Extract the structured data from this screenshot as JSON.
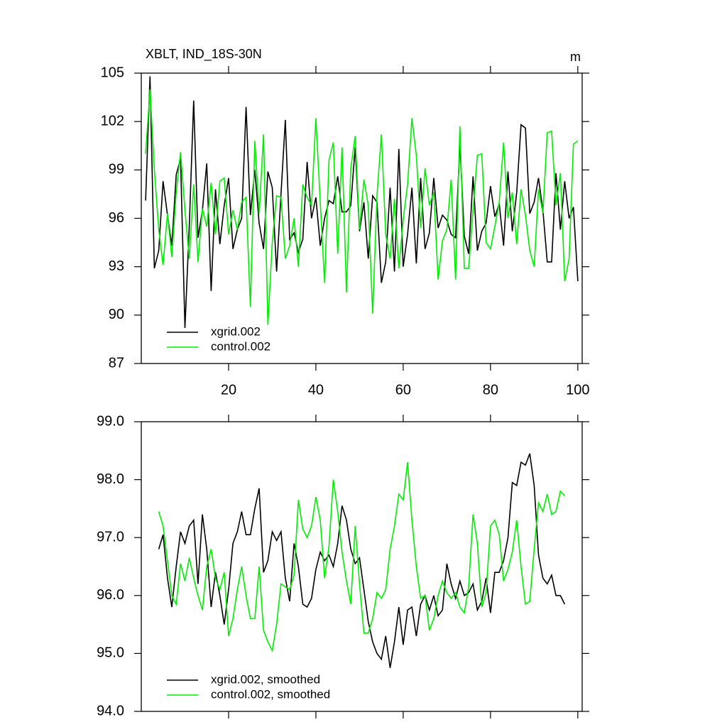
{
  "chart_data": [
    {
      "type": "line",
      "title": "XBLT, IND_18S-30N",
      "units": "m",
      "x": [
        1,
        2,
        3,
        4,
        5,
        6,
        7,
        8,
        9,
        10,
        11,
        12,
        13,
        14,
        15,
        16,
        17,
        18,
        19,
        20,
        21,
        22,
        23,
        24,
        25,
        26,
        27,
        28,
        29,
        30,
        31,
        32,
        33,
        34,
        35,
        36,
        37,
        38,
        39,
        40,
        41,
        42,
        43,
        44,
        45,
        46,
        47,
        48,
        49,
        50,
        51,
        52,
        53,
        54,
        55,
        56,
        57,
        58,
        59,
        60,
        61,
        62,
        63,
        64,
        65,
        66,
        67,
        68,
        69,
        70,
        71,
        72,
        73,
        74,
        75,
        76,
        77,
        78,
        79,
        80,
        81,
        82,
        83,
        84,
        85,
        86,
        87,
        88,
        89,
        90,
        91,
        92,
        93,
        94,
        95,
        96,
        97,
        98,
        99,
        100
      ],
      "series": [
        {
          "name": "xgrid.002",
          "color": "#000000",
          "values": [
            97.1,
            104.8,
            92.9,
            94.0,
            98.3,
            96.2,
            94.3,
            98.7,
            99.7,
            89.2,
            95.5,
            103.3,
            94.8,
            96.5,
            99.4,
            91.5,
            97.8,
            94.4,
            96.8,
            98.5,
            94.1,
            95.3,
            96.0,
            102.9,
            96.2,
            99.0,
            95.7,
            94.1,
            98.9,
            97.9,
            92.7,
            97.5,
            102.1,
            94.7,
            95.1,
            93.9,
            94.7,
            99.5,
            96.0,
            97.3,
            94.3,
            96.0,
            97.1,
            96.9,
            98.6,
            96.4,
            96.4,
            96.8,
            100.4,
            95.2,
            97.0,
            93.5,
            97.4,
            97.0,
            92.0,
            93.3,
            97.9,
            92.7,
            100.3,
            93.0,
            95.0,
            97.9,
            93.2,
            98.5,
            94.1,
            95.1,
            98.5,
            95.4,
            96.2,
            95.9,
            95.0,
            94.8,
            100.6,
            94.9,
            93.8,
            98.6,
            94.0,
            95.2,
            95.7,
            98.0,
            96.1,
            96.9,
            94.3,
            98.9,
            95.2,
            97.6,
            101.8,
            101.6,
            96.3,
            97.0,
            98.5,
            96.5,
            93.3,
            93.3,
            98.8,
            95.3,
            98.3,
            96.0,
            96.7,
            92.1
          ]
        },
        {
          "name": "control.002",
          "color": "#00ee00",
          "values": [
            100.0,
            104.0,
            99.0,
            95.3,
            93.1,
            96.3,
            93.6,
            97.6,
            100.1,
            96.5,
            93.5,
            98.1,
            93.3,
            96.6,
            95.5,
            98.2,
            95.0,
            98.3,
            98.5,
            95.0,
            96.5,
            95.3,
            97.0,
            97.3,
            90.5,
            100.8,
            96.3,
            101.2,
            89.4,
            94.5,
            97.4,
            97.3,
            93.5,
            94.3,
            96.0,
            93.0,
            98.1,
            97.3,
            96.8,
            102.2,
            97.0,
            92.0,
            99.6,
            100.7,
            93.8,
            100.4,
            91.4,
            99.1,
            101.1,
            95.3,
            98.4,
            96.8,
            90.1,
            97.4,
            101.2,
            95.0,
            93.5,
            97.2,
            92.9,
            95.9,
            98.1,
            102.2,
            99.9,
            95.4,
            99.1,
            96.8,
            97.6,
            92.2,
            94.6,
            95.3,
            98.4,
            92.2,
            101.7,
            92.9,
            92.9,
            96.5,
            99.9,
            100.0,
            94.5,
            94.1,
            95.5,
            97.0,
            100.7,
            96.0,
            97.6,
            94.4,
            97.8,
            96.2,
            94.0,
            93.0,
            97.8,
            96.3,
            101.3,
            101.4,
            96.8,
            98.8,
            92.1,
            93.5,
            100.6,
            100.8
          ]
        }
      ],
      "xlim": [
        0,
        101
      ],
      "xticks": [
        20,
        40,
        60,
        80,
        100
      ],
      "xtick_labels": true,
      "ylim": [
        87,
        105
      ],
      "yticks": [
        87,
        90,
        93,
        96,
        99,
        102,
        105
      ],
      "legend": "lower left"
    },
    {
      "type": "line",
      "x": [
        4,
        5,
        6,
        7,
        8,
        9,
        10,
        11,
        12,
        13,
        14,
        15,
        16,
        17,
        18,
        19,
        20,
        21,
        22,
        23,
        24,
        25,
        26,
        27,
        28,
        29,
        30,
        31,
        32,
        33,
        34,
        35,
        36,
        37,
        38,
        39,
        40,
        41,
        42,
        43,
        44,
        45,
        46,
        47,
        48,
        49,
        50,
        51,
        52,
        53,
        54,
        55,
        56,
        57,
        58,
        59,
        60,
        61,
        62,
        63,
        64,
        65,
        66,
        67,
        68,
        69,
        70,
        71,
        72,
        73,
        74,
        75,
        76,
        77,
        78,
        79,
        80,
        81,
        82,
        83,
        84,
        85,
        86,
        87,
        88,
        89,
        90,
        91,
        92,
        93,
        94,
        95,
        96,
        97
      ],
      "series": [
        {
          "name": "xgrid.002, smoothed",
          "color": "#000000",
          "values": [
            96.8,
            97.05,
            96.3,
            95.8,
            96.5,
            97.1,
            96.9,
            97.2,
            97.3,
            96.2,
            97.4,
            96.8,
            95.8,
            96.4,
            96.0,
            95.5,
            96.1,
            96.9,
            97.1,
            97.45,
            97.05,
            97.05,
            97.5,
            97.85,
            96.4,
            96.6,
            97.1,
            96.95,
            97.1,
            96.3,
            95.9,
            96.9,
            96.5,
            95.85,
            95.8,
            95.95,
            96.45,
            96.75,
            96.6,
            96.7,
            96.5,
            96.9,
            97.55,
            97.3,
            96.8,
            96.55,
            96.65,
            96.1,
            95.55,
            95.2,
            95.0,
            94.9,
            95.3,
            94.75,
            95.2,
            95.8,
            95.15,
            95.75,
            95.8,
            95.3,
            95.85,
            96.0,
            95.75,
            96.0,
            95.65,
            95.75,
            96.55,
            96.2,
            95.95,
            96.25,
            96.0,
            96.05,
            96.2,
            95.75,
            95.9,
            96.3,
            95.7,
            96.4,
            96.4,
            96.6,
            97.0,
            97.95,
            97.9,
            98.3,
            98.25,
            98.45,
            97.9,
            96.7,
            96.3,
            96.2,
            96.35,
            96.0,
            96.0,
            95.85
          ]
        },
        {
          "name": "control.002, smoothed",
          "color": "#00ee00",
          "values": [
            97.45,
            97.2,
            96.6,
            96.0,
            95.85,
            96.55,
            96.25,
            96.65,
            96.3,
            96.0,
            95.75,
            96.5,
            96.8,
            96.3,
            96.1,
            96.4,
            95.3,
            95.6,
            96.1,
            96.5,
            96.0,
            95.6,
            95.6,
            96.5,
            95.4,
            95.2,
            95.05,
            95.5,
            96.2,
            96.15,
            96.1,
            96.35,
            97.65,
            97.15,
            97.0,
            97.2,
            97.7,
            97.3,
            96.3,
            96.85,
            98.0,
            97.45,
            96.75,
            96.25,
            95.85,
            97.2,
            96.2,
            95.35,
            95.35,
            95.6,
            96.05,
            95.95,
            96.1,
            96.8,
            97.2,
            97.75,
            97.65,
            98.3,
            97.3,
            96.5,
            95.95,
            96.0,
            95.4,
            95.6,
            96.0,
            96.25,
            96.05,
            95.95,
            96.05,
            95.8,
            95.7,
            96.15,
            97.4,
            96.9,
            95.8,
            96.05,
            97.2,
            97.3,
            97.05,
            96.25,
            96.45,
            96.75,
            97.3,
            96.5,
            95.85,
            95.9,
            96.8,
            97.6,
            97.45,
            97.75,
            97.4,
            97.45,
            97.8,
            97.72
          ]
        }
      ],
      "xlim": [
        0,
        101
      ],
      "xticks": [
        20,
        40,
        60,
        80,
        100
      ],
      "xtick_labels": false,
      "ylim": [
        94,
        99
      ],
      "yticks": [
        {
          "value": 94,
          "label": "94.0"
        },
        {
          "value": 95,
          "label": "95.0"
        },
        {
          "value": 96,
          "label": "96.0"
        },
        {
          "value": 97,
          "label": "97.0"
        },
        {
          "value": 98,
          "label": "98.0"
        },
        {
          "value": 99,
          "label": "99.0"
        }
      ],
      "legend": "lower left"
    }
  ]
}
